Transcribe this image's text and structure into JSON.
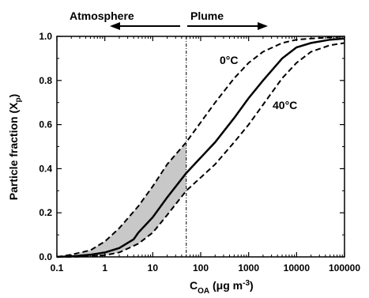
{
  "chart_data": {
    "type": "line",
    "x_scale": "log",
    "xlim": [
      0.1,
      100000
    ],
    "ylim": [
      0.0,
      1.0
    ],
    "xlabel_main": "C",
    "xlabel_sub": "OA",
    "xlabel_units": " (μg m",
    "xlabel_sup": "-3",
    "xlabel_close": ")",
    "ylabel_main": "Particle fraction (X",
    "ylabel_sub": "p",
    "ylabel_close": ")",
    "x_ticks": [
      {
        "value": 0.1,
        "label": "0.1"
      },
      {
        "value": 1,
        "label": "1"
      },
      {
        "value": 10,
        "label": "10"
      },
      {
        "value": 100,
        "label": "100"
      },
      {
        "value": 1000,
        "label": "1000"
      },
      {
        "value": 10000,
        "label": "10000"
      },
      {
        "value": 100000,
        "label": "100000"
      }
    ],
    "y_ticks": [
      {
        "value": 0.0,
        "label": "0.0"
      },
      {
        "value": 0.2,
        "label": "0.2"
      },
      {
        "value": 0.4,
        "label": "0.4"
      },
      {
        "value": 0.6,
        "label": "0.6"
      },
      {
        "value": 0.8,
        "label": "0.8"
      },
      {
        "value": 1.0,
        "label": "1.0"
      }
    ],
    "divider_x": 50,
    "shaded_region": {
      "x_min": 0.3,
      "x_max": 50,
      "color": "#c8c8c8"
    },
    "series": [
      {
        "style": "dashed",
        "x": [
          0.1,
          0.2,
          0.5,
          1,
          2,
          5,
          10,
          20,
          50,
          100,
          200,
          500,
          1000,
          2000,
          5000,
          10000,
          20000,
          50000,
          100000
        ],
        "y": [
          0.0,
          0.01,
          0.03,
          0.07,
          0.13,
          0.23,
          0.32,
          0.42,
          0.52,
          0.61,
          0.7,
          0.81,
          0.88,
          0.93,
          0.97,
          0.985,
          0.99,
          0.995,
          1.0
        ]
      },
      {
        "style": "solid",
        "x": [
          0.1,
          0.2,
          0.5,
          1,
          2,
          4,
          5,
          10,
          20,
          50,
          100,
          200,
          500,
          1000,
          2000,
          5000,
          10000,
          20000,
          50000,
          100000
        ],
        "y": [
          0.0,
          0.003,
          0.01,
          0.02,
          0.04,
          0.08,
          0.11,
          0.18,
          0.27,
          0.38,
          0.45,
          0.52,
          0.63,
          0.72,
          0.8,
          0.9,
          0.95,
          0.97,
          0.985,
          0.99
        ]
      },
      {
        "style": "dashed",
        "x": [
          0.1,
          0.2,
          0.5,
          1,
          2,
          5,
          10,
          20,
          50,
          100,
          200,
          500,
          1000,
          2000,
          5000,
          10000,
          20000,
          50000,
          100000
        ],
        "y": [
          0.0,
          0.0,
          0.003,
          0.008,
          0.02,
          0.06,
          0.11,
          0.19,
          0.3,
          0.36,
          0.42,
          0.52,
          0.6,
          0.69,
          0.81,
          0.88,
          0.93,
          0.96,
          0.97
        ]
      }
    ],
    "annotations": {
      "atmosphere": "Atmosphere",
      "plume": "Plume",
      "curve_0c": "0°C",
      "curve_40c": "40°C"
    }
  }
}
